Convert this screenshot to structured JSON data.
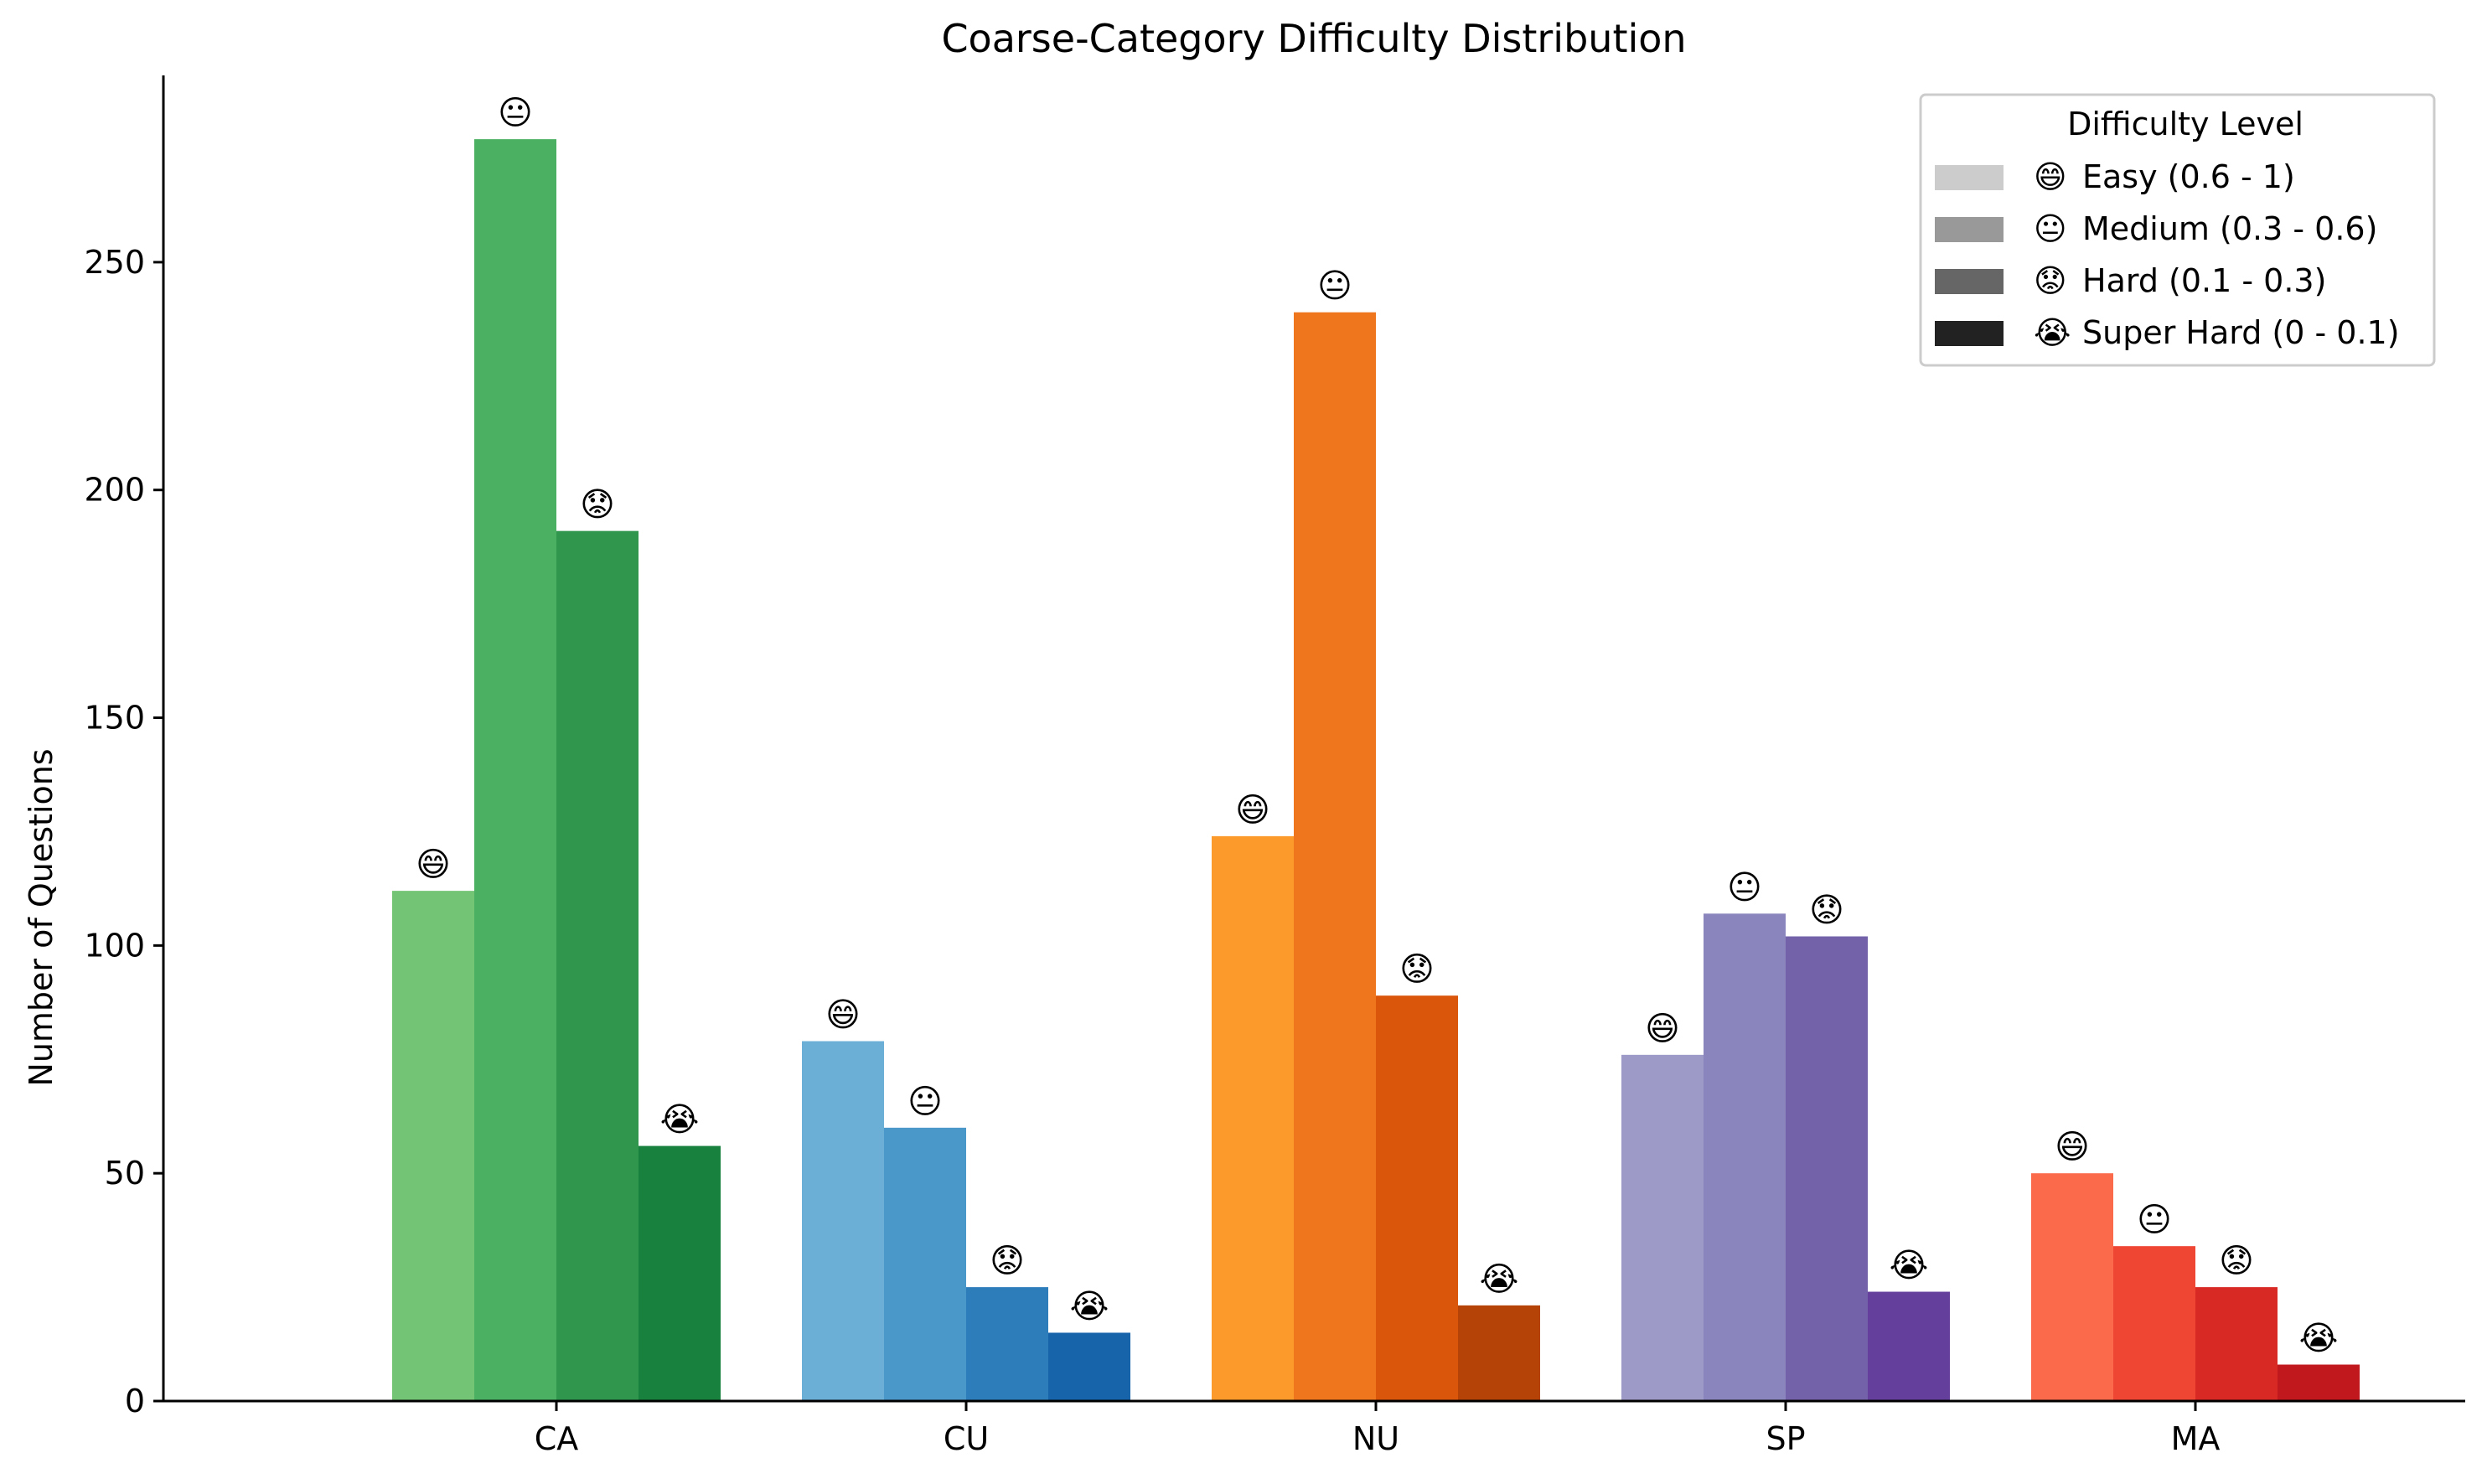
{
  "chart_data": {
    "type": "bar",
    "title": "Coarse-Category Difficulty Distribution",
    "xlabel": "",
    "ylabel": "Number of Questions",
    "ylim": [
      0,
      291
    ],
    "yticks": [
      0,
      50,
      100,
      150,
      200,
      250
    ],
    "categories": [
      "CA",
      "CU",
      "NU",
      "SP",
      "MA"
    ],
    "grid": false,
    "legend": {
      "title": "Difficulty Level",
      "placement": "top-right",
      "entries": [
        {
          "icon": "😄",
          "label": "Easy (0.6 - 1)",
          "color": "#cccccc"
        },
        {
          "icon": "😐",
          "label": "Medium (0.3 - 0.6)",
          "color": "#999999"
        },
        {
          "icon": "😟",
          "label": "Hard (0.1 - 0.3)",
          "color": "#666666"
        },
        {
          "icon": "😭",
          "label": "Super Hard (0 - 0.1)",
          "color": "#222222"
        }
      ]
    },
    "series": [
      {
        "values": [
          112,
          79,
          124,
          76,
          50
        ],
        "icon": "😄"
      },
      {
        "values": [
          277,
          60,
          239,
          107,
          34
        ],
        "icon": "😐"
      },
      {
        "values": [
          191,
          25,
          89,
          102,
          25
        ],
        "icon": "😟"
      },
      {
        "values": [
          56,
          15,
          21,
          24,
          8
        ],
        "icon": "😭"
      }
    ],
    "category_colors": {
      "CA": [
        "#74c476",
        "#4bb062",
        "#30964e",
        "#17813d"
      ],
      "CU": [
        "#6baed6",
        "#4a98c9",
        "#2d7dbb",
        "#1764ab"
      ],
      "NU": [
        "#fd9a2c",
        "#ef761c",
        "#d9560b",
        "#b54207"
      ],
      "SP": [
        "#9e9ac8",
        "#8a85bd",
        "#7362aa",
        "#643f9b"
      ],
      "MA": [
        "#fb6a4a",
        "#ef4533",
        "#d92925",
        "#c0181d"
      ]
    }
  }
}
